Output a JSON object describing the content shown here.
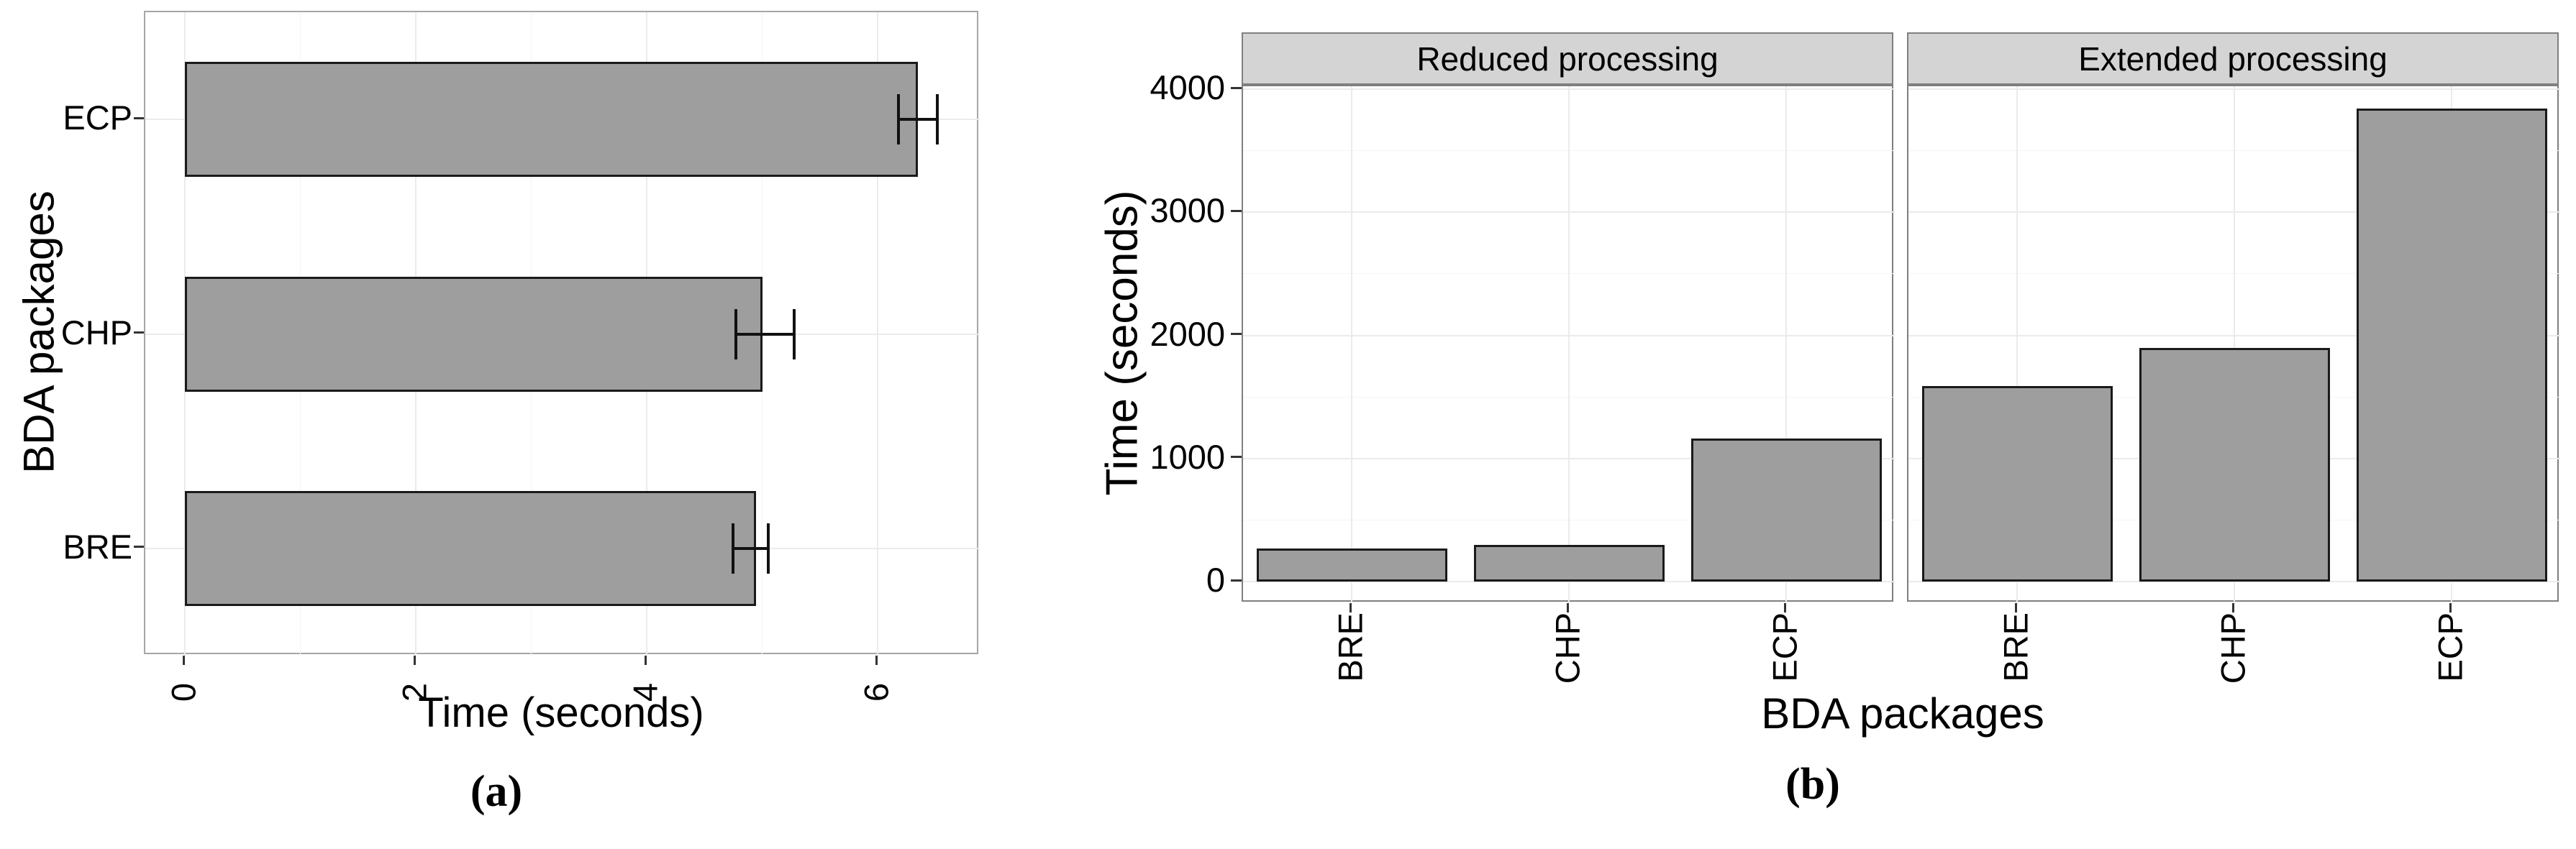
{
  "figure": {
    "caption_a": "(a)",
    "caption_b": "(b)"
  },
  "colors": {
    "bar_fill": "#9e9e9e",
    "bar_stroke": "#1a1a1a",
    "error_bar": "#111111",
    "strip_fill": "#d4d4d4",
    "strip_border": "#7f7f7f",
    "panel_border_a": "#a6a6a6",
    "panel_border_b": "#7f7f7f",
    "grid_major": "#ebebeb",
    "grid_minor": "#f5f5f5",
    "tick_mark": "#333333",
    "text": "#000000"
  },
  "chart_data": [
    {
      "id": "a",
      "type": "bar",
      "orientation": "horizontal",
      "xlabel": "Time (seconds)",
      "ylabel": "BDA packages",
      "caption": "(a)",
      "categories": [
        "ECP",
        "CHP",
        "BRE"
      ],
      "values": [
        6.35,
        5.0,
        4.95
      ],
      "error_low": [
        6.18,
        4.77,
        4.75
      ],
      "error_high": [
        6.52,
        5.28,
        5.05
      ],
      "xlim": [
        0,
        6.9
      ],
      "xticks": [
        0,
        2,
        4,
        6
      ],
      "xticks_minor": [
        1,
        3,
        5
      ],
      "grid": true,
      "legend": "none"
    },
    {
      "id": "b",
      "type": "bar",
      "orientation": "vertical",
      "xlabel": "BDA packages",
      "ylabel": "Time (seconds)",
      "caption": "(b)",
      "facets": [
        {
          "label": "Reduced processing",
          "categories": [
            "BRE",
            "CHP",
            "ECP"
          ],
          "values": [
            270,
            295,
            1160
          ]
        },
        {
          "label": "Extended processing",
          "categories": [
            "BRE",
            "CHP",
            "ECP"
          ],
          "values": [
            1590,
            1900,
            3840
          ]
        }
      ],
      "ylim": [
        0,
        4000
      ],
      "yticks": [
        0,
        1000,
        2000,
        3000,
        4000
      ],
      "yticks_minor": [
        500,
        1500,
        2500,
        3500
      ],
      "grid": true,
      "legend": "none"
    }
  ]
}
